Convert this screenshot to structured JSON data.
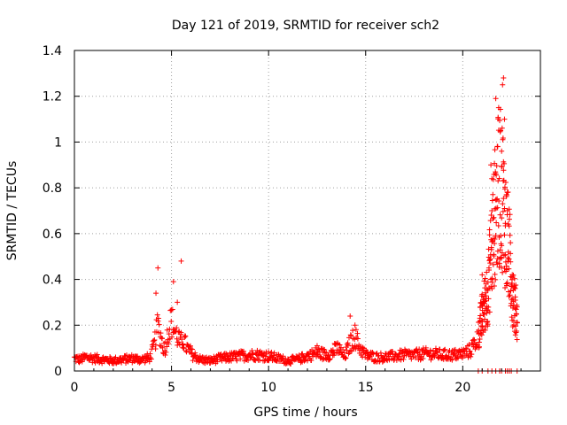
{
  "chart_data": {
    "type": "scatter",
    "title": "Day 121 of 2019, SRMTID for receiver sch2",
    "xlabel": "GPS time / hours",
    "ylabel": "SRMTID / TECUs",
    "xlim": [
      0,
      24
    ],
    "ylim": [
      0,
      1.4
    ],
    "xticks": [
      "0",
      "5",
      "10",
      "15",
      "20"
    ],
    "yticks": [
      "0",
      "0.2",
      "0.4",
      "0.6",
      "0.8",
      "1",
      "1.2",
      "1.4"
    ],
    "grid": true,
    "marker": "+",
    "color": "#ff0000",
    "series": [
      {
        "name": "SRMTID",
        "profile": [
          [
            0,
            0.055
          ],
          [
            0.3,
            0.05
          ],
          [
            0.6,
            0.06
          ],
          [
            1.0,
            0.055
          ],
          [
            1.5,
            0.05
          ],
          [
            2.0,
            0.045
          ],
          [
            2.5,
            0.05
          ],
          [
            3.0,
            0.055
          ],
          [
            3.5,
            0.05
          ],
          [
            3.9,
            0.06
          ],
          [
            4.1,
            0.11
          ],
          [
            4.3,
            0.2
          ],
          [
            4.45,
            0.15
          ],
          [
            4.65,
            0.09
          ],
          [
            4.85,
            0.18
          ],
          [
            5.0,
            0.22
          ],
          [
            5.2,
            0.17
          ],
          [
            5.45,
            0.12
          ],
          [
            5.6,
            0.14
          ],
          [
            5.8,
            0.1
          ],
          [
            6.1,
            0.07
          ],
          [
            6.5,
            0.05
          ],
          [
            7.0,
            0.045
          ],
          [
            7.5,
            0.055
          ],
          [
            8.0,
            0.06
          ],
          [
            8.5,
            0.065
          ],
          [
            9.0,
            0.07
          ],
          [
            9.5,
            0.07
          ],
          [
            10.0,
            0.065
          ],
          [
            10.5,
            0.055
          ],
          [
            11.0,
            0.045
          ],
          [
            11.5,
            0.05
          ],
          [
            12.0,
            0.065
          ],
          [
            12.5,
            0.08
          ],
          [
            13.0,
            0.07
          ],
          [
            13.3,
            0.08
          ],
          [
            13.6,
            0.1
          ],
          [
            13.9,
            0.06
          ],
          [
            14.2,
            0.12
          ],
          [
            14.45,
            0.15
          ],
          [
            14.7,
            0.1
          ],
          [
            15.0,
            0.07
          ],
          [
            15.5,
            0.06
          ],
          [
            16.0,
            0.06
          ],
          [
            16.5,
            0.065
          ],
          [
            17.0,
            0.07
          ],
          [
            17.5,
            0.07
          ],
          [
            18.0,
            0.075
          ],
          [
            18.5,
            0.075
          ],
          [
            19.0,
            0.07
          ],
          [
            19.5,
            0.07
          ],
          [
            20.0,
            0.075
          ],
          [
            20.4,
            0.09
          ],
          [
            20.7,
            0.13
          ],
          [
            20.9,
            0.2
          ],
          [
            21.1,
            0.28
          ],
          [
            21.3,
            0.36
          ],
          [
            21.5,
            0.55
          ],
          [
            21.7,
            0.72
          ],
          [
            21.9,
            0.8
          ],
          [
            22.05,
            0.78
          ],
          [
            22.2,
            0.62
          ],
          [
            22.4,
            0.5
          ],
          [
            22.6,
            0.33
          ],
          [
            22.8,
            0.22
          ]
        ],
        "spikes": [
          [
            4.3,
            0.45
          ],
          [
            4.2,
            0.34
          ],
          [
            5.5,
            0.48
          ],
          [
            5.1,
            0.39
          ],
          [
            5.3,
            0.3
          ],
          [
            14.2,
            0.24
          ],
          [
            14.45,
            0.2
          ],
          [
            12.5,
            0.11
          ],
          [
            13.4,
            0.12
          ],
          [
            21.7,
            1.19
          ],
          [
            21.85,
            1.15
          ],
          [
            21.95,
            1.05
          ],
          [
            22.1,
            1.28
          ],
          [
            22.05,
            1.25
          ],
          [
            22.15,
            1.1
          ],
          [
            21.8,
            0.98
          ],
          [
            22.0,
            0.96
          ],
          [
            22.3,
            0.78
          ],
          [
            22.25,
            0.77
          ],
          [
            21.5,
            0.84
          ],
          [
            21.45,
            0.9
          ],
          [
            21.6,
            0.67
          ],
          [
            21.0,
            0.42
          ],
          [
            21.2,
            0.38
          ],
          [
            21.35,
            0.45
          ],
          [
            22.55,
            0.42
          ],
          [
            22.7,
            0.36
          ],
          [
            22.8,
            0.28
          ]
        ],
        "floor_points_x": [
          20.8,
          21.0,
          21.3,
          21.5,
          21.7,
          21.9,
          22.0,
          22.2,
          22.3,
          22.4,
          22.5,
          22.8
        ]
      }
    ]
  }
}
